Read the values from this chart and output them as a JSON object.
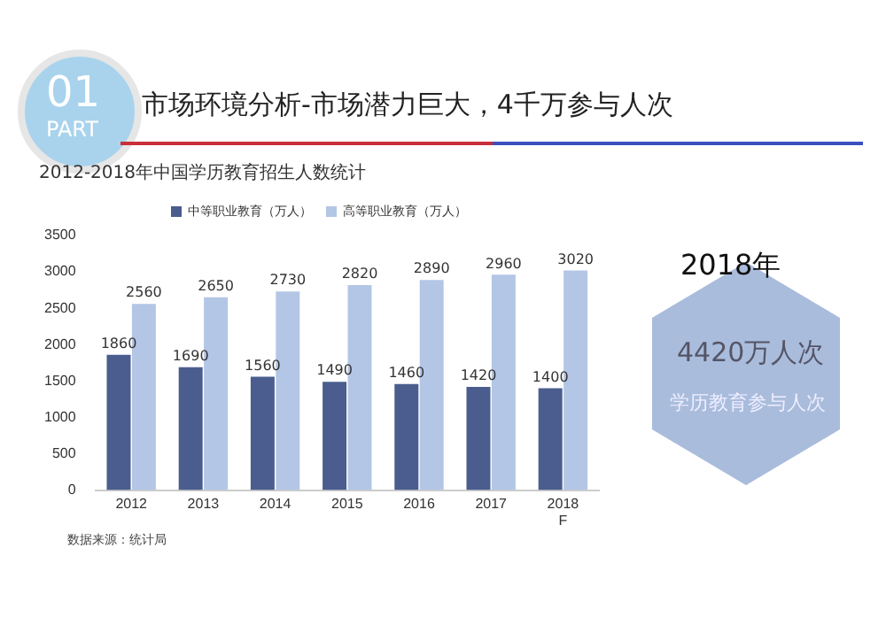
{
  "chart_data": {
    "type": "bar",
    "title": "2012-2018年中国学历教育招生人数统计",
    "categories": [
      "2012",
      "2013",
      "2014",
      "2015",
      "2016",
      "2017",
      "2018 F"
    ],
    "series": [
      {
        "name": "中等职业教育（万人）",
        "color": "#4a5d8e",
        "values": [
          1860,
          1690,
          1560,
          1490,
          1460,
          1420,
          1400
        ]
      },
      {
        "name": "高等职业教育（万人）",
        "color": "#b3c6e6",
        "values": [
          2560,
          2650,
          2730,
          2820,
          2890,
          2960,
          3020
        ]
      }
    ],
    "ylim": [
      0,
      3500
    ],
    "yticks": [
      0,
      500,
      1000,
      1500,
      2000,
      2500,
      3000,
      3500
    ],
    "grid": false,
    "legend": "top",
    "data_labels": true,
    "annotations": [
      "01",
      "PART",
      "市场环境分析-市场潜力巨大，4千万参与人次",
      "2018年",
      "4420万人次",
      "学历教育参与人次",
      "数据来源：统计局"
    ]
  }
}
